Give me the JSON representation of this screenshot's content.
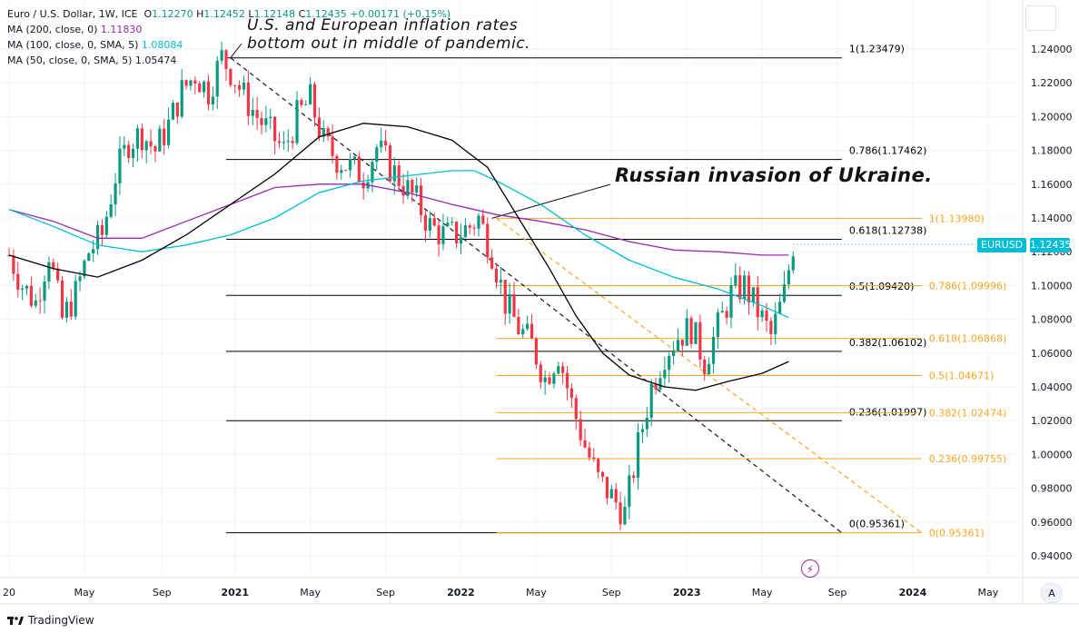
{
  "legend": {
    "symbol_line": "Euro / U.S. Dollar, 1W, ICE",
    "o_label": "O",
    "o_value": "1.12270",
    "h_label": "H",
    "h_value": "1.12452",
    "l_label": "L",
    "l_value": "1.12148",
    "c_label": "C",
    "c_value": "1.12435",
    "change": "+0.00171 (+0.15%)",
    "ma200_label": "MA (200, close, 0)",
    "ma200_value": "1.11830",
    "ma100_label": "MA (100, close, 0, SMA, 5)",
    "ma100_value": "1.08084",
    "ma50_label": "MA (50, close, 0, SMA, 5)",
    "ma50_value": "1.05474"
  },
  "annotations": {
    "inflation_line1": "U.S. and European inflation rates",
    "inflation_line2": "bottom out in middle of pandemic.",
    "invasion": "Russian invasion of Ukraine."
  },
  "price_tag": {
    "symbol": "EURUSD",
    "value": "1.12435"
  },
  "auto_button": "A",
  "footer": {
    "brand": "TradingView"
  },
  "colors": {
    "up": "#089981",
    "down": "#f23645",
    "ma200": "#9c27b0",
    "ma100": "#00bcd4",
    "ma50": "#000000",
    "fib_black": "#000000",
    "fib_orange": "#f5a623",
    "trend": "#131722"
  },
  "chart_data": {
    "type": "candlestick",
    "title": "Euro / U.S. Dollar, 1W, ICE",
    "ylim": [
      0.93,
      1.255
    ],
    "y_ticks": [
      "1.24000",
      "1.22000",
      "1.20000",
      "1.18000",
      "1.16000",
      "1.14000",
      "1.12000",
      "1.10000",
      "1.08000",
      "1.06000",
      "1.04000",
      "1.02000",
      "1.00000",
      "0.98000",
      "0.96000",
      "0.94000"
    ],
    "x_ticks": [
      "20",
      "May",
      "Sep",
      "2021",
      "May",
      "Sep",
      "2022",
      "May",
      "Sep",
      "2023",
      "May",
      "Sep",
      "2024",
      "May"
    ],
    "x_tick_t": [
      0,
      17,
      34.5,
      51,
      68,
      85,
      102,
      119,
      136,
      153,
      170,
      187,
      204,
      221
    ],
    "candle_anchors_t": [
      0,
      3,
      6,
      9,
      12,
      15,
      18,
      21,
      24,
      27,
      30,
      33,
      36,
      39,
      42,
      45,
      48,
      50.5,
      53,
      56,
      59,
      62,
      65,
      68,
      71,
      74,
      77,
      80,
      83,
      86,
      89,
      92,
      95,
      98,
      101,
      104,
      106,
      109,
      112,
      115,
      118,
      121,
      124,
      127,
      130,
      133,
      136,
      139,
      142,
      145,
      148,
      151,
      154,
      157,
      160,
      163,
      166,
      169,
      172,
      175,
      177
    ],
    "candle_anchors_close": [
      1.118,
      1.1,
      1.09,
      1.12,
      1.08,
      1.095,
      1.12,
      1.13,
      1.165,
      1.185,
      1.19,
      1.18,
      1.195,
      1.215,
      1.225,
      1.215,
      1.235,
      1.225,
      1.212,
      1.2,
      1.19,
      1.18,
      1.2,
      1.21,
      1.185,
      1.175,
      1.17,
      1.165,
      1.182,
      1.17,
      1.16,
      1.15,
      1.135,
      1.13,
      1.13,
      1.135,
      1.14,
      1.12,
      1.09,
      1.075,
      1.065,
      1.045,
      1.06,
      1.03,
      1.005,
      0.985,
      0.975,
      0.965,
      1.005,
      1.04,
      1.06,
      1.07,
      1.075,
      1.055,
      1.075,
      1.095,
      1.1,
      1.085,
      1.07,
      1.095,
      1.1243
    ],
    "ma_series": [
      {
        "name": "MA (200, close, 0)",
        "value": "1.11830",
        "points": [
          [
            0,
            1.145
          ],
          [
            10,
            1.138
          ],
          [
            20,
            1.128
          ],
          [
            30,
            1.128
          ],
          [
            40,
            1.138
          ],
          [
            50,
            1.148
          ],
          [
            60,
            1.158
          ],
          [
            70,
            1.16
          ],
          [
            80,
            1.16
          ],
          [
            90,
            1.155
          ],
          [
            100,
            1.148
          ],
          [
            110,
            1.142
          ],
          [
            120,
            1.138
          ],
          [
            130,
            1.133
          ],
          [
            140,
            1.126
          ],
          [
            150,
            1.121
          ],
          [
            160,
            1.12
          ],
          [
            170,
            1.118
          ],
          [
            176,
            1.118
          ]
        ]
      },
      {
        "name": "MA (100, close, 0, SMA, 5)",
        "value": "1.08084",
        "points": [
          [
            0,
            1.145
          ],
          [
            10,
            1.135
          ],
          [
            20,
            1.124
          ],
          [
            30,
            1.12
          ],
          [
            40,
            1.124
          ],
          [
            50,
            1.13
          ],
          [
            60,
            1.14
          ],
          [
            70,
            1.155
          ],
          [
            80,
            1.162
          ],
          [
            90,
            1.165
          ],
          [
            100,
            1.168
          ],
          [
            105,
            1.168
          ],
          [
            110,
            1.162
          ],
          [
            120,
            1.148
          ],
          [
            130,
            1.13
          ],
          [
            140,
            1.115
          ],
          [
            150,
            1.105
          ],
          [
            160,
            1.098
          ],
          [
            170,
            1.088
          ],
          [
            176,
            1.081
          ]
        ]
      },
      {
        "name": "MA (50, close, 0, SMA, 5)",
        "value": "1.05474",
        "points": [
          [
            0,
            1.118
          ],
          [
            10,
            1.11
          ],
          [
            20,
            1.105
          ],
          [
            30,
            1.115
          ],
          [
            40,
            1.13
          ],
          [
            50,
            1.148
          ],
          [
            60,
            1.166
          ],
          [
            70,
            1.188
          ],
          [
            80,
            1.196
          ],
          [
            90,
            1.194
          ],
          [
            100,
            1.186
          ],
          [
            108,
            1.17
          ],
          [
            115,
            1.14
          ],
          [
            122,
            1.11
          ],
          [
            128,
            1.082
          ],
          [
            134,
            1.06
          ],
          [
            140,
            1.047
          ],
          [
            148,
            1.04
          ],
          [
            155,
            1.038
          ],
          [
            162,
            1.043
          ],
          [
            170,
            1.048
          ],
          [
            176,
            1.055
          ]
        ]
      }
    ],
    "fib_black": {
      "t_start": 49,
      "t_end": 188,
      "levels": [
        {
          "label": "1(1.23479)",
          "value": 1.23479
        },
        {
          "label": "0.786(1.17462)",
          "value": 1.17462
        },
        {
          "label": "0.618(1.12738)",
          "value": 1.12738
        },
        {
          "label": "0.5(1.09420)",
          "value": 1.0942
        },
        {
          "label": "0.382(1.06102)",
          "value": 1.06102
        },
        {
          "label": "0.236(1.01997)",
          "value": 1.01997
        },
        {
          "label": "0(0.95361)",
          "value": 0.95361
        }
      ]
    },
    "fib_orange": {
      "t_start": 110,
      "t_end": 206,
      "levels": [
        {
          "label": "1(1.13980)",
          "value": 1.1398
        },
        {
          "label": "0.786(1.09996)",
          "value": 1.09996
        },
        {
          "label": "0.618(1.06868)",
          "value": 1.06868
        },
        {
          "label": "0.5(1.04671)",
          "value": 1.04671
        },
        {
          "label": "0.382(1.02474)",
          "value": 1.02474
        },
        {
          "label": "0.236(0.99755)",
          "value": 0.99755
        },
        {
          "label": "0(0.95361)",
          "value": 0.95361
        }
      ]
    },
    "trendlines": [
      {
        "name": "black-dashed",
        "from": [
          50,
          1.23479
        ],
        "to": [
          188,
          0.95361
        ]
      },
      {
        "name": "orange-dashed",
        "from": [
          110,
          1.1398
        ],
        "to": [
          206,
          0.95361
        ]
      }
    ],
    "current_price": 1.12435
  }
}
